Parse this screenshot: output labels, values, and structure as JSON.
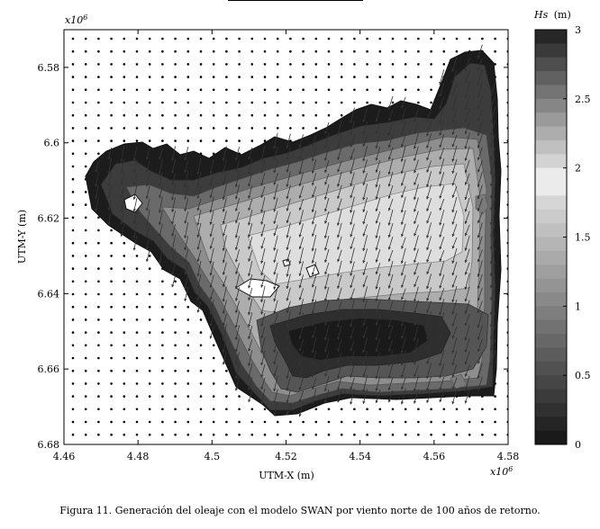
{
  "figure": {
    "caption": "Figura 11. Generación del oleaje con el modelo SWAN por viento norte de 100 años de retorno."
  },
  "chart_data": {
    "type": "heatmap",
    "title": "",
    "xlabel": "UTM-X (m)",
    "ylabel": "UTM-Y (m)",
    "x_multiplier": "x10",
    "x_multiplier_exp": "6",
    "y_multiplier": "x10",
    "y_multiplier_exp": "6",
    "xlim": [
      4.46,
      4.58
    ],
    "ylim": [
      6.57,
      6.68
    ],
    "y_inverted": true,
    "xticks": [
      "4.46",
      "4.48",
      "4.5",
      "4.52",
      "4.54",
      "4.56",
      "4.58"
    ],
    "yticks": [
      "6.58",
      "6.6",
      "6.62",
      "6.64",
      "6.66",
      "6.68"
    ],
    "colorbar": {
      "label_var": "Hs",
      "label_unit": "(m)",
      "range": [
        0,
        3
      ],
      "ticks": [
        "3",
        "2.5",
        "2",
        "1.5",
        "1",
        "0.5",
        "0"
      ]
    },
    "wind_direction": "north",
    "return_period_years": 100,
    "levels": [
      {
        "hs": 0.3,
        "color": "#1c1c1c"
      },
      {
        "hs": 0.75,
        "color": "#3c3c3c"
      },
      {
        "hs": 1.1,
        "color": "#6a6a6a"
      },
      {
        "hs": 1.3,
        "color": "#8e8e8e"
      },
      {
        "hs": 1.5,
        "color": "#adadad"
      },
      {
        "hs": 1.7,
        "color": "#c9c9c9"
      },
      {
        "hs": 1.85,
        "color": "#dedede"
      },
      {
        "hs": 0.5,
        "color": "#555555"
      }
    ]
  }
}
